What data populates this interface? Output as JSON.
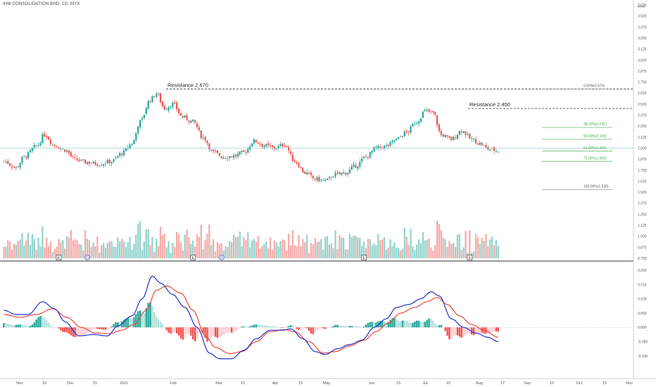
{
  "header": {
    "symbol_label": "IHM CONSOLIDATION BHD, 1D, MYX"
  },
  "chart_data": [
    {
      "type": "candlestick",
      "title": "IHM CONSOLIDATION BHD, 1D, MYX",
      "currency": "MYR",
      "ylim": [
        0.75,
        3.625
      ],
      "price_axis_ticks": [
        "3.625",
        "3.500",
        "3.375",
        "3.250",
        "3.125",
        "3.000",
        "2.875",
        "2.750",
        "2.625",
        "2.500",
        "2.375",
        "2.250",
        "2.125",
        "2.000",
        "1.875",
        "1.750",
        "1.625",
        "1.500",
        "1.375",
        "1.250",
        "1.125",
        "1.000",
        "0.875",
        "0.750"
      ],
      "time_axis_ticks": [
        "Nov",
        "16",
        "Dec",
        "15",
        "2021",
        "Feb",
        "Mar",
        "15",
        "Apr",
        "15",
        "May",
        "Jun",
        "15",
        "Jul",
        "15",
        "Aug",
        "17",
        "Sep",
        "15",
        "Oct",
        "15",
        "Nov"
      ],
      "price_path": [
        {
          "idx": 0,
          "close": 1.85
        },
        {
          "idx": 6,
          "close": 1.78
        },
        {
          "idx": 10,
          "close": 1.9
        },
        {
          "idx": 16,
          "close": 2.02
        },
        {
          "idx": 20,
          "close": 2.15
        },
        {
          "idx": 25,
          "close": 2.03
        },
        {
          "idx": 30,
          "close": 1.98
        },
        {
          "idx": 35,
          "close": 1.87
        },
        {
          "idx": 40,
          "close": 1.84
        },
        {
          "idx": 47,
          "close": 1.82
        },
        {
          "idx": 53,
          "close": 1.85
        },
        {
          "idx": 58,
          "close": 1.94
        },
        {
          "idx": 63,
          "close": 2.05
        },
        {
          "idx": 67,
          "close": 2.3
        },
        {
          "idx": 72,
          "close": 2.55
        },
        {
          "idx": 75,
          "close": 2.62
        },
        {
          "idx": 79,
          "close": 2.45
        },
        {
          "idx": 83,
          "close": 2.5
        },
        {
          "idx": 88,
          "close": 2.35
        },
        {
          "idx": 93,
          "close": 2.3
        },
        {
          "idx": 98,
          "close": 2.12
        },
        {
          "idx": 103,
          "close": 1.95
        },
        {
          "idx": 108,
          "close": 1.9
        },
        {
          "idx": 113,
          "close": 1.91
        },
        {
          "idx": 118,
          "close": 1.95
        },
        {
          "idx": 123,
          "close": 2.08
        },
        {
          "idx": 128,
          "close": 2.03
        },
        {
          "idx": 133,
          "close": 2.0
        },
        {
          "idx": 138,
          "close": 2.04
        },
        {
          "idx": 143,
          "close": 1.85
        },
        {
          "idx": 148,
          "close": 1.72
        },
        {
          "idx": 153,
          "close": 1.65
        },
        {
          "idx": 158,
          "close": 1.63
        },
        {
          "idx": 163,
          "close": 1.7
        },
        {
          "idx": 168,
          "close": 1.72
        },
        {
          "idx": 173,
          "close": 1.8
        },
        {
          "idx": 178,
          "close": 1.9
        },
        {
          "idx": 183,
          "close": 2.0
        },
        {
          "idx": 188,
          "close": 2.02
        },
        {
          "idx": 193,
          "close": 2.1
        },
        {
          "idx": 198,
          "close": 2.18
        },
        {
          "idx": 203,
          "close": 2.3
        },
        {
          "idx": 207,
          "close": 2.42
        },
        {
          "idx": 211,
          "close": 2.4
        },
        {
          "idx": 215,
          "close": 2.15
        },
        {
          "idx": 220,
          "close": 2.1
        },
        {
          "idx": 225,
          "close": 2.2
        },
        {
          "idx": 230,
          "close": 2.1
        },
        {
          "idx": 234,
          "close": 2.05
        },
        {
          "idx": 238,
          "close": 1.99
        },
        {
          "idx": 243,
          "close": 1.97
        }
      ],
      "annotations": {
        "resistances": [
          {
            "label": "Resistance 2.670",
            "price": 2.67
          },
          {
            "label": "Resistance 2.450",
            "price": 2.45
          }
        ],
        "fib_levels": [
          {
            "label": "0.00%(2.670)",
            "price": 2.67
          },
          {
            "label": "38.20%(2.235)",
            "price": 2.235
          },
          {
            "label": "50.00%(2.100)",
            "price": 2.1
          },
          {
            "label": "61.80%(1.965)",
            "price": 1.965
          },
          {
            "label": "72.00%(1.850)",
            "price": 1.85
          },
          {
            "label": "100.00%(1.530)",
            "price": 1.53
          }
        ],
        "horizontal_line_price": 2.0,
        "event_markers": [
          {
            "text": "E",
            "idx": 27
          },
          {
            "text": "D",
            "idx": 41
          },
          {
            "text": "E",
            "idx": 93
          },
          {
            "text": "D",
            "idx": 107
          },
          {
            "text": "E",
            "idx": 177
          },
          {
            "text": "E",
            "idx": 229
          }
        ]
      },
      "legend_position": "none",
      "grid": false
    },
    {
      "type": "macd",
      "ylim": [
        -0.13,
        0.21
      ],
      "axis_ticks": [
        "0.200",
        "0.150",
        "0.100",
        "0.050",
        "0.000",
        "-0.050",
        "-0.100"
      ],
      "macd_line_color": "#2233cc",
      "signal_line_color": "#e8483c",
      "histogram_colors": {
        "positive_rising": "#26a69a",
        "positive_falling": "#b2dfdb",
        "negative_falling": "#ef5350",
        "negative_rising": "#ffcdd2"
      },
      "macd_path": [
        {
          "idx": 0,
          "v": 0.06
        },
        {
          "idx": 6,
          "v": 0.045
        },
        {
          "idx": 12,
          "v": 0.045
        },
        {
          "idx": 19,
          "v": 0.09
        },
        {
          "idx": 25,
          "v": 0.065
        },
        {
          "idx": 30,
          "v": 0.02
        },
        {
          "idx": 37,
          "v": -0.03
        },
        {
          "idx": 44,
          "v": -0.025
        },
        {
          "idx": 51,
          "v": -0.03
        },
        {
          "idx": 56,
          "v": 0.005
        },
        {
          "idx": 63,
          "v": 0.04
        },
        {
          "idx": 68,
          "v": 0.1
        },
        {
          "idx": 73,
          "v": 0.18
        },
        {
          "idx": 77,
          "v": 0.155
        },
        {
          "idx": 83,
          "v": 0.115
        },
        {
          "idx": 89,
          "v": 0.07
        },
        {
          "idx": 95,
          "v": 0.0
        },
        {
          "idx": 101,
          "v": -0.09
        },
        {
          "idx": 106,
          "v": -0.11
        },
        {
          "idx": 112,
          "v": -0.11
        },
        {
          "idx": 118,
          "v": -0.08
        },
        {
          "idx": 124,
          "v": -0.04
        },
        {
          "idx": 131,
          "v": -0.01
        },
        {
          "idx": 137,
          "v": -0.01
        },
        {
          "idx": 141,
          "v": -0.005
        },
        {
          "idx": 147,
          "v": -0.04
        },
        {
          "idx": 153,
          "v": -0.085
        },
        {
          "idx": 158,
          "v": -0.095
        },
        {
          "idx": 164,
          "v": -0.075
        },
        {
          "idx": 170,
          "v": -0.06
        },
        {
          "idx": 176,
          "v": -0.045
        },
        {
          "idx": 182,
          "v": 0.0
        },
        {
          "idx": 188,
          "v": 0.03
        },
        {
          "idx": 193,
          "v": 0.07
        },
        {
          "idx": 199,
          "v": 0.08
        },
        {
          "idx": 205,
          "v": 0.1
        },
        {
          "idx": 210,
          "v": 0.125
        },
        {
          "idx": 214,
          "v": 0.11
        },
        {
          "idx": 220,
          "v": 0.03
        },
        {
          "idx": 226,
          "v": 0.0
        },
        {
          "idx": 232,
          "v": -0.02
        },
        {
          "idx": 238,
          "v": -0.035
        },
        {
          "idx": 243,
          "v": -0.05
        }
      ],
      "signal_path": [
        {
          "idx": 0,
          "v": 0.045
        },
        {
          "idx": 8,
          "v": 0.035
        },
        {
          "idx": 16,
          "v": 0.045
        },
        {
          "idx": 24,
          "v": 0.065
        },
        {
          "idx": 31,
          "v": 0.035
        },
        {
          "idx": 38,
          "v": 0.0
        },
        {
          "idx": 45,
          "v": -0.02
        },
        {
          "idx": 52,
          "v": -0.022
        },
        {
          "idx": 58,
          "v": -0.01
        },
        {
          "idx": 64,
          "v": 0.01
        },
        {
          "idx": 70,
          "v": 0.06
        },
        {
          "idx": 75,
          "v": 0.13
        },
        {
          "idx": 80,
          "v": 0.145
        },
        {
          "idx": 87,
          "v": 0.12
        },
        {
          "idx": 93,
          "v": 0.06
        },
        {
          "idx": 99,
          "v": -0.03
        },
        {
          "idx": 104,
          "v": -0.07
        },
        {
          "idx": 111,
          "v": -0.092
        },
        {
          "idx": 117,
          "v": -0.085
        },
        {
          "idx": 124,
          "v": -0.05
        },
        {
          "idx": 131,
          "v": -0.015
        },
        {
          "idx": 138,
          "v": -0.008
        },
        {
          "idx": 143,
          "v": -0.015
        },
        {
          "idx": 150,
          "v": -0.05
        },
        {
          "idx": 157,
          "v": -0.09
        },
        {
          "idx": 163,
          "v": -0.085
        },
        {
          "idx": 170,
          "v": -0.065
        },
        {
          "idx": 177,
          "v": -0.045
        },
        {
          "idx": 183,
          "v": -0.015
        },
        {
          "idx": 189,
          "v": 0.015
        },
        {
          "idx": 195,
          "v": 0.05
        },
        {
          "idx": 202,
          "v": 0.07
        },
        {
          "idx": 208,
          "v": 0.09
        },
        {
          "idx": 213,
          "v": 0.105
        },
        {
          "idx": 218,
          "v": 0.08
        },
        {
          "idx": 224,
          "v": 0.04
        },
        {
          "idx": 230,
          "v": 0.01
        },
        {
          "idx": 236,
          "v": -0.01
        },
        {
          "idx": 243,
          "v": -0.035
        }
      ]
    }
  ]
}
